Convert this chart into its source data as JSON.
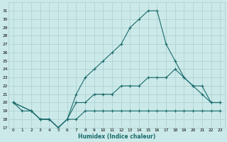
{
  "xlabel": "Humidex (Indice chaleur)",
  "xlim": [
    -0.5,
    23.5
  ],
  "ylim": [
    17,
    32
  ],
  "yticks": [
    17,
    18,
    19,
    20,
    21,
    22,
    23,
    24,
    25,
    26,
    27,
    28,
    29,
    30,
    31
  ],
  "xticks": [
    0,
    1,
    2,
    3,
    4,
    5,
    6,
    7,
    8,
    9,
    10,
    11,
    12,
    13,
    14,
    15,
    16,
    17,
    18,
    19,
    20,
    21,
    22,
    23
  ],
  "bg_color": "#cce9e9",
  "line_color": "#1a6b6b",
  "grid_color": "#aacece",
  "line1_x": [
    0,
    1,
    2,
    3,
    4,
    5,
    6,
    7,
    8,
    9,
    10,
    11,
    12,
    13,
    14,
    15,
    16,
    17,
    18,
    19,
    20,
    21,
    22,
    23
  ],
  "line1_y": [
    20,
    19,
    19,
    18,
    18,
    17,
    18,
    21,
    23,
    24,
    25,
    26,
    27,
    29,
    30,
    31,
    31,
    27,
    25,
    23,
    22,
    21,
    20,
    20
  ],
  "line2_x": [
    0,
    2,
    3,
    4,
    5,
    6,
    7,
    8,
    9,
    10,
    11,
    12,
    13,
    14,
    15,
    16,
    17,
    18,
    19,
    20,
    21,
    22,
    23
  ],
  "line2_y": [
    20,
    19,
    18,
    18,
    17,
    18,
    20,
    20,
    21,
    21,
    21,
    22,
    22,
    22,
    23,
    23,
    23,
    24,
    23,
    22,
    22,
    20,
    20
  ],
  "line3_x": [
    0,
    2,
    3,
    4,
    5,
    6,
    7,
    8,
    9,
    10,
    11,
    12,
    13,
    14,
    15,
    16,
    17,
    18,
    19,
    20,
    21,
    22,
    23
  ],
  "line3_y": [
    20,
    19,
    18,
    18,
    17,
    18,
    18,
    19,
    19,
    19,
    19,
    19,
    19,
    19,
    19,
    19,
    19,
    19,
    19,
    19,
    19,
    19,
    19
  ]
}
